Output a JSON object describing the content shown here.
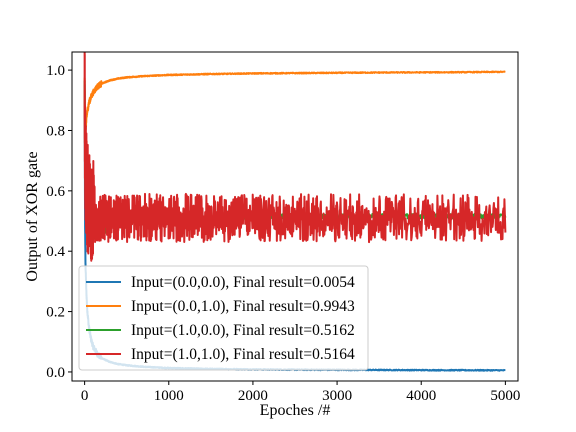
{
  "chart_data": {
    "type": "line",
    "title": "",
    "xlabel": "Epoches /#",
    "ylabel": "Output of XOR gate",
    "xlim": [
      -150,
      5150
    ],
    "ylim": [
      -0.03,
      1.06
    ],
    "xticks": [
      0,
      1000,
      2000,
      3000,
      4000,
      5000
    ],
    "yticks": [
      0.0,
      0.2,
      0.4,
      0.6,
      0.8,
      1.0
    ],
    "xtick_labels": [
      "0",
      "1000",
      "2000",
      "3000",
      "4000",
      "5000"
    ],
    "ytick_labels": [
      "0.0",
      "0.2",
      "0.4",
      "0.6",
      "0.8",
      "1.0"
    ],
    "grid": false,
    "legend_position": "lower-left",
    "series": [
      {
        "name": "Input=(0.0,0.0), Final result=0.0054",
        "color": "#1f77b4",
        "x": [
          0,
          5,
          10,
          20,
          30,
          50,
          75,
          100,
          150,
          200,
          300,
          400,
          500,
          700,
          1000,
          1500,
          2000,
          2500,
          3000,
          3500,
          4000,
          4500,
          5000
        ],
        "y": [
          0.95,
          0.5,
          0.36,
          0.27,
          0.21,
          0.15,
          0.11,
          0.085,
          0.06,
          0.046,
          0.033,
          0.026,
          0.022,
          0.017,
          0.013,
          0.01,
          0.0085,
          0.0075,
          0.007,
          0.0065,
          0.006,
          0.0057,
          0.0054
        ]
      },
      {
        "name": "Input=(0.0,1.0), Final result=0.9943",
        "color": "#ff7f0e",
        "x": [
          0,
          5,
          10,
          20,
          30,
          50,
          75,
          100,
          150,
          200,
          300,
          400,
          500,
          700,
          1000,
          1500,
          2000,
          2500,
          3000,
          3500,
          4000,
          4500,
          5000
        ],
        "y": [
          0.97,
          0.78,
          0.8,
          0.83,
          0.86,
          0.89,
          0.91,
          0.925,
          0.945,
          0.955,
          0.966,
          0.972,
          0.976,
          0.98,
          0.984,
          0.987,
          0.989,
          0.99,
          0.991,
          0.992,
          0.9925,
          0.993,
          0.9943
        ]
      },
      {
        "name": "Input=(1.0,0.0), Final result=0.5162",
        "color": "#2ca02c",
        "x": [
          0,
          5,
          10,
          20,
          30,
          50,
          75,
          100,
          150,
          200,
          300,
          500,
          1000,
          2000,
          3000,
          4000,
          5000
        ],
        "y": [
          0.96,
          0.72,
          0.6,
          0.55,
          0.5,
          0.48,
          0.47,
          0.46,
          0.46,
          0.47,
          0.49,
          0.5,
          0.51,
          0.515,
          0.516,
          0.516,
          0.5162
        ]
      },
      {
        "name": "Input=(1.0,1.0), Final result=0.5164",
        "color": "#d62728",
        "x": [
          0,
          5,
          10,
          20,
          30,
          50,
          75,
          100,
          150,
          200,
          300,
          500,
          1000,
          2000,
          3000,
          4000,
          5000
        ],
        "y": [
          0.97,
          0.75,
          0.66,
          0.62,
          0.58,
          0.56,
          0.55,
          0.54,
          0.53,
          0.52,
          0.52,
          0.515,
          0.515,
          0.516,
          0.516,
          0.516,
          0.5164
        ],
        "oscillation_band": [
          0.43,
          0.59
        ]
      }
    ]
  }
}
